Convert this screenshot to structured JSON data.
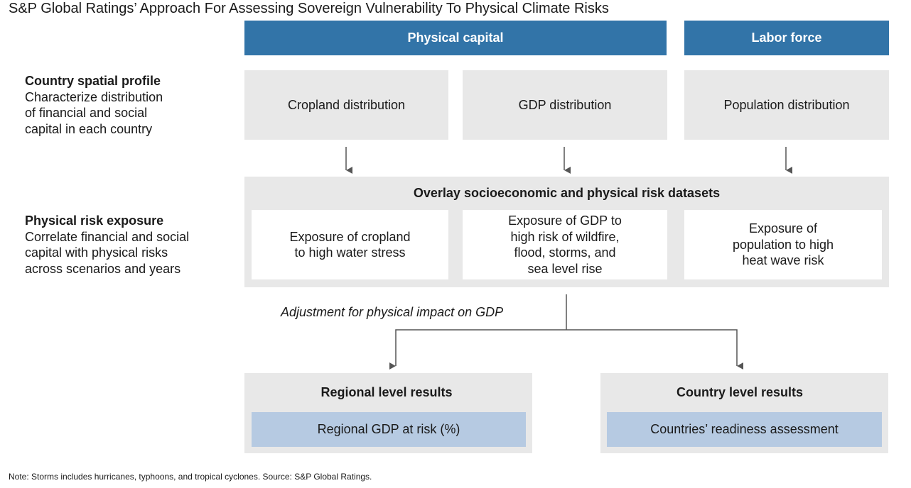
{
  "title": "S&P Global Ratings’ Approach For Assessing Sovereign Vulnerability To Physical Climate Risks",
  "headers": [
    "Physical capital",
    "Labor force"
  ],
  "row_labels": [
    {
      "title": "Country spatial profile",
      "lines": [
        "Characterize distribution",
        "of financial and social",
        "capital in each country"
      ]
    },
    {
      "title": "Physical risk exposure",
      "lines": [
        "Correlate financial and social",
        "capital with physical risks",
        "across scenarios and years"
      ]
    }
  ],
  "profile_boxes": [
    "Cropland distribution",
    "GDP distribution",
    "Population distribution"
  ],
  "overlay": {
    "title": "Overlay socioeconomic and physical risk datasets",
    "boxes": [
      [
        "Exposure of cropland",
        "to high water stress"
      ],
      [
        "Exposure of GDP to",
        "high risk of wildfire,",
        "flood, storms, and",
        "sea level rise"
      ],
      [
        "Exposure of",
        "population to high",
        "heat wave risk"
      ]
    ]
  },
  "adjustment": "Adjustment for physical impact on GDP",
  "results": [
    {
      "title": "Regional level results",
      "item": "Regional GDP at risk (%)"
    },
    {
      "title": "Country level results",
      "item": "Countries’ readiness assessment"
    }
  ],
  "note": "Note: Storms includes hurricanes, typhoons, and tropical cyclones. Source: S&P Global Ratings."
}
